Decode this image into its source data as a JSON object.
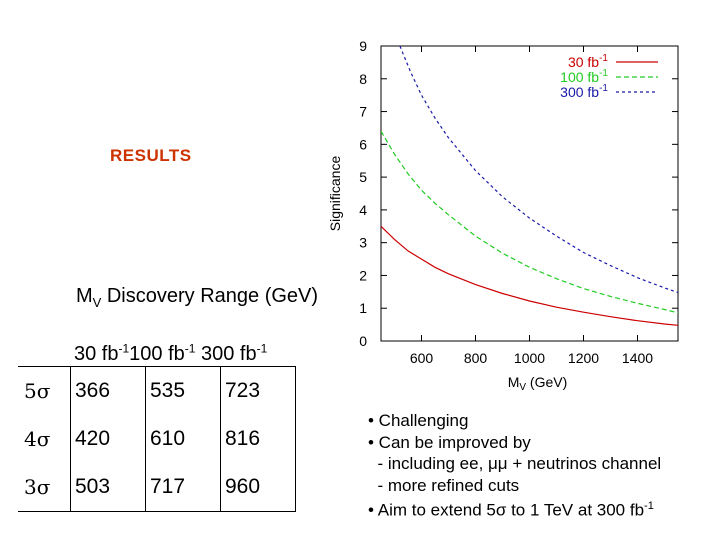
{
  "slide": {
    "title": "RESULTS",
    "range_heading": {
      "prefix": "M",
      "sub": "V",
      "text": " Discovery Range (GeV)"
    },
    "luminosities": [
      {
        "value": "30 fb",
        "exp": "-1"
      },
      {
        "value": "100 fb",
        "exp": "-1"
      },
      {
        "value": " 300 fb",
        "exp": "-1"
      }
    ],
    "table": {
      "rows": [
        {
          "sig": "5σ",
          "values": [
            "366",
            "535",
            "723"
          ]
        },
        {
          "sig": "4σ",
          "values": [
            "420",
            "610",
            "816"
          ]
        },
        {
          "sig": "3σ",
          "values": [
            "503",
            "717",
            "960"
          ]
        }
      ]
    },
    "bullets": [
      "• Challenging",
      "• Can be improved by",
      "  - including ee, μμ + neutrinos channel",
      "  - more refined cuts"
    ],
    "aim_bullet": {
      "text": "• Aim to extend 5σ to 1 TeV at 300 fb",
      "exp": "-1"
    }
  },
  "chart_data": {
    "type": "line",
    "title": "",
    "ylabel": "Significance",
    "xlabel_main": "M",
    "xlabel_sub": "V",
    "xlabel_unit": " (GeV)",
    "xlim": [
      450,
      1550
    ],
    "ylim": [
      0,
      9
    ],
    "xticks": [
      600,
      800,
      1000,
      1200,
      1400
    ],
    "yticks": [
      0,
      1,
      2,
      3,
      4,
      5,
      6,
      7,
      8,
      9
    ],
    "series": [
      {
        "name": "30 fb",
        "exp": "-1",
        "color": "#cc0000",
        "dash": "solid",
        "x": [
          450,
          500,
          550,
          600,
          650,
          700,
          800,
          900,
          1000,
          1100,
          1200,
          1300,
          1400,
          1500,
          1550
        ],
        "y": [
          3.5,
          3.1,
          2.75,
          2.5,
          2.25,
          2.05,
          1.72,
          1.45,
          1.22,
          1.03,
          0.88,
          0.74,
          0.62,
          0.52,
          0.48
        ]
      },
      {
        "name": "100 fb",
        "exp": "-1",
        "color": "#22cc22",
        "dash": "dashed",
        "x": [
          450,
          500,
          550,
          600,
          650,
          700,
          800,
          900,
          1000,
          1100,
          1200,
          1300,
          1400,
          1500,
          1550
        ],
        "y": [
          6.4,
          5.7,
          5.1,
          4.6,
          4.2,
          3.85,
          3.2,
          2.68,
          2.25,
          1.9,
          1.6,
          1.36,
          1.15,
          0.96,
          0.86
        ]
      },
      {
        "name": "300 fb",
        "exp": "-1",
        "color": "#1a1aaa",
        "dash": "dotted",
        "x": [
          520,
          560,
          600,
          650,
          700,
          800,
          900,
          1000,
          1100,
          1200,
          1300,
          1400,
          1500,
          1550
        ],
        "y": [
          9.0,
          8.2,
          7.5,
          6.8,
          6.2,
          5.2,
          4.4,
          3.75,
          3.2,
          2.7,
          2.3,
          1.93,
          1.62,
          1.48
        ]
      }
    ],
    "legend_position": "top-right"
  }
}
